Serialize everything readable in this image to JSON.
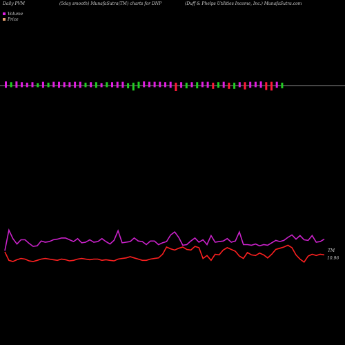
{
  "header": {
    "left": "Daily PVM",
    "center": "(5day smooth) MunafaSutra(TM) charts for DNP",
    "right": "(Duff & Phelps Utilities Income, Inc.) MunafaSutra.com"
  },
  "legend": {
    "volume_label": "Volume",
    "price_label": "Price",
    "volume_color": "#e01ee0",
    "price_color": "#e8a070"
  },
  "colors": {
    "up_bar": "#e01ee0",
    "down_bar": "#22cc22",
    "neg_bar": "#ff1a3a",
    "pvm_line": "#cc22cc",
    "price_line": "#ff2020",
    "baseline": "#bbbbbb"
  },
  "chart_data": {
    "type": "line",
    "title": "(5day smooth) MunafaSutra(TM) charts for DNP",
    "series": [
      {
        "name": "Volume",
        "type": "bar",
        "colors": [
          "m",
          "g",
          "m",
          "m",
          "m",
          "m",
          "g",
          "m",
          "g",
          "m",
          "m",
          "m",
          "m",
          "m",
          "m",
          "g",
          "m",
          "g",
          "m",
          "g",
          "m",
          "m",
          "m",
          "g",
          "g",
          "g",
          "m",
          "m",
          "m",
          "m",
          "m",
          "m",
          "r",
          "m",
          "g",
          "m",
          "g",
          "m",
          "m",
          "r",
          "g",
          "m",
          "r",
          "g",
          "m",
          "r",
          "m",
          "m",
          "m",
          "r",
          "r",
          "m",
          "g"
        ],
        "values": [
          1.0,
          0.8,
          1.0,
          0.8,
          0.7,
          0.8,
          0.6,
          0.9,
          0.7,
          0.9,
          0.9,
          0.8,
          0.8,
          0.9,
          0.9,
          0.7,
          0.8,
          0.8,
          0.6,
          0.8,
          0.8,
          0.9,
          0.9,
          0.6,
          0.7,
          0.9,
          1.0,
          0.9,
          0.9,
          0.9,
          0.8,
          0.9,
          0.7,
          0.8,
          0.7,
          0.8,
          0.8,
          0.9,
          0.9,
          0.7,
          0.8,
          0.9,
          0.7,
          0.7,
          0.8,
          0.8,
          0.9,
          0.9,
          1.0,
          0.8,
          0.9,
          0.9,
          0.7
        ],
        "below": [
          0.4,
          0.3,
          0.4,
          0.3,
          0.3,
          0.3,
          0.3,
          0.4,
          0.3,
          0.3,
          0.4,
          0.3,
          0.3,
          0.4,
          0.4,
          0.3,
          0.3,
          0.4,
          0.3,
          0.3,
          0.3,
          0.4,
          0.4,
          0.5,
          0.9,
          0.5,
          0.3,
          0.3,
          0.3,
          0.3,
          0.3,
          0.4,
          1.0,
          0.4,
          0.5,
          0.3,
          0.5,
          0.3,
          0.4,
          0.6,
          0.4,
          0.4,
          0.6,
          0.6,
          0.3,
          0.7,
          0.4,
          0.3,
          0.4,
          0.8,
          0.9,
          0.4,
          0.5
        ]
      },
      {
        "name": "MunafaSutra PVM",
        "values": [
          14.2,
          17.6,
          16.2,
          15.3,
          16.0,
          16.0,
          15.4,
          14.9,
          15.0,
          15.8,
          15.6,
          15.7,
          16.0,
          16.1,
          16.3,
          16.3,
          16.0,
          15.7,
          16.2,
          15.5,
          15.6,
          16.0,
          15.6,
          15.7,
          16.2,
          15.7,
          15.3,
          15.9,
          17.5,
          15.5,
          15.6,
          15.7,
          16.3,
          15.8,
          15.7,
          15.2,
          15.8,
          15.8,
          15.2,
          15.5,
          15.7,
          16.8,
          17.3,
          16.4,
          15.1,
          15.2,
          15.8,
          16.3,
          15.6,
          16.0,
          15.2,
          16.7,
          15.6,
          15.7,
          15.8,
          16.2,
          15.6,
          15.8,
          17.3,
          15.2,
          15.2,
          15.1,
          15.3,
          15.0,
          15.2,
          15.1,
          15.5,
          15.9,
          15.7,
          15.9,
          16.4,
          16.8,
          16.1,
          16.7,
          16.0,
          15.9,
          16.7,
          15.6,
          15.7,
          16.1
        ],
        "color": "#cc22cc"
      },
      {
        "name": "Price",
        "values": [
          14.0,
          12.6,
          12.4,
          12.7,
          12.9,
          12.8,
          12.5,
          12.4,
          12.6,
          12.8,
          12.9,
          12.8,
          12.7,
          12.6,
          12.8,
          12.7,
          12.5,
          12.6,
          12.8,
          12.9,
          12.8,
          12.7,
          12.8,
          12.8,
          12.6,
          12.7,
          12.6,
          12.5,
          12.8,
          12.9,
          13.0,
          13.2,
          13.0,
          12.8,
          12.6,
          12.6,
          12.8,
          12.9,
          13.0,
          13.6,
          14.8,
          14.5,
          14.3,
          14.6,
          14.8,
          14.4,
          14.3,
          14.9,
          14.7,
          12.9,
          13.4,
          12.6,
          13.6,
          13.5,
          14.3,
          14.7,
          14.4,
          14.1,
          13.3,
          12.9,
          13.9,
          13.5,
          13.4,
          13.8,
          13.5,
          13.0,
          13.6,
          14.4,
          14.6,
          14.8,
          15.1,
          14.7,
          13.5,
          12.8,
          12.3,
          13.3,
          13.6,
          13.4,
          13.6,
          13.5
        ],
        "color": "#ff2020"
      }
    ],
    "end_labels": [
      "TM",
      "10.96"
    ],
    "ylim": [
      10,
      18
    ]
  }
}
